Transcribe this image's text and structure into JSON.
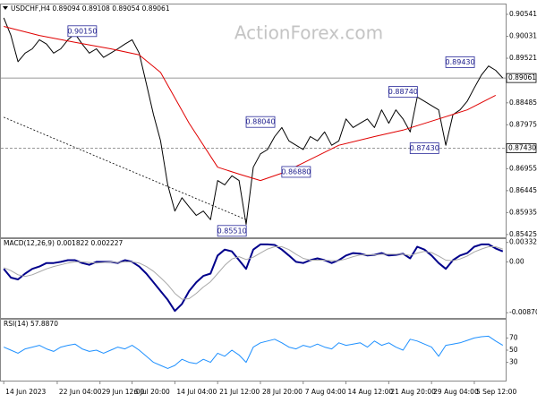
{
  "chart_data": [
    {
      "type": "line",
      "title": "USDCHF,H4  0.89094 0.89108 0.89054 0.89061",
      "watermark": "ActionForex.com",
      "xlim": [
        -0.4,
        70.4
      ],
      "ylim": [
        0.8536,
        0.9077
      ],
      "yticks": [
        0.90541,
        0.90031,
        0.89521,
        0.88485,
        0.87975,
        0.86955,
        0.86445,
        0.85935,
        0.85425
      ],
      "series": [
        {
          "color": "#000000",
          "values": [
            0.9046,
            0.9005,
            0.8944,
            0.8964,
            0.8974,
            0.8995,
            0.8985,
            0.8964,
            0.8974,
            0.8995,
            0.9009,
            0.8985,
            0.8964,
            0.8974,
            0.8954,
            0.8964,
            0.8974,
            0.8985,
            0.8995,
            0.8964,
            0.8893,
            0.8821,
            0.876,
            0.8658,
            0.8597,
            0.8628,
            0.8607,
            0.8587,
            0.8597,
            0.8577,
            0.8668,
            0.8658,
            0.8679,
            0.8668,
            0.8566,
            0.8699,
            0.873,
            0.874,
            0.877,
            0.8791,
            0.876,
            0.875,
            0.874,
            0.877,
            0.876,
            0.8781,
            0.875,
            0.876,
            0.8811,
            0.8791,
            0.8801,
            0.8811,
            0.8791,
            0.8832,
            0.8801,
            0.8832,
            0.8811,
            0.8781,
            0.8862,
            0.8852,
            0.8842,
            0.8832,
            0.875,
            0.8821,
            0.8832,
            0.8852,
            0.8883,
            0.8913,
            0.8934,
            0.8924,
            0.8906
          ]
        },
        {
          "color": "#e00000",
          "x": [
            0,
            5,
            10,
            15,
            19,
            22,
            26,
            30,
            33,
            36,
            39,
            42,
            47,
            52,
            56,
            61,
            65,
            69
          ],
          "values": [
            0.9026,
            0.9005,
            0.8989,
            0.8974,
            0.896,
            0.8919,
            0.8801,
            0.8699,
            0.8683,
            0.8668,
            0.8685,
            0.8709,
            0.875,
            0.877,
            0.8785,
            0.8811,
            0.8832,
            0.8866
          ]
        }
      ],
      "hlines": [
        {
          "value": 0.89061,
          "label": "0.89061",
          "style": "solid"
        },
        {
          "value": 0.8743,
          "label": "0.87430",
          "style": "dashed"
        }
      ],
      "trendline": {
        "x": [
          0,
          34
        ],
        "values": [
          0.8815,
          0.8577
        ]
      },
      "levels": {
        "x": [
          9,
          30,
          34,
          39,
          54,
          57,
          62
        ],
        "values": [
          0.9015,
          0.8551,
          0.8804,
          0.8688,
          0.8874,
          0.8743,
          0.8943
        ],
        "value_labels": [
          "0.90150",
          "0.85510",
          "0.88040",
          "0.86880",
          "0.88740",
          "0.87430",
          "0.89430"
        ]
      }
    },
    {
      "type": "line",
      "title": "MACD(12,26,9) 0.001822 0.002227",
      "xlim": [
        -0.4,
        70.4
      ],
      "ylim": [
        -0.0096,
        0.0039
      ],
      "yticks": [
        0.003328,
        {
          "value": 0,
          "label": "0.00"
        },
        -0.008707
      ],
      "series": [
        {
          "color": "#00008b",
          "values": [
            -0.0012,
            -0.0027,
            -0.003,
            -0.002,
            -0.0012,
            -0.0008,
            -0.0002,
            -0.0002,
            0,
            0.0003,
            0.0003,
            -0.0002,
            -0.0005,
            0,
            0,
            0,
            -0.0002,
            0.0003,
            0,
            -0.0008,
            -0.002,
            -0.0035,
            -0.005,
            -0.0065,
            -0.0084,
            -0.0072,
            -0.005,
            -0.0035,
            -0.0024,
            -0.002,
            0.0011,
            0.0021,
            0.0018,
            0.0003,
            -0.0012,
            0.0021,
            0.003,
            0.003,
            0.0029,
            0.0021,
            0.0011,
            0,
            -0.0002,
            0.0003,
            0.0006,
            0.0003,
            -0.0002,
            0.0003,
            0.0011,
            0.0015,
            0.0014,
            0.0011,
            0.0012,
            0.0015,
            0.0011,
            0.0012,
            0.0014,
            0.0006,
            0.0026,
            0.0021,
            0.0011,
            -0.0002,
            -0.0012,
            0.0003,
            0.0011,
            0.0015,
            0.0026,
            0.003,
            0.003,
            0.0023,
            0.0018
          ]
        },
        {
          "color": "#a8a8a8",
          "values": [
            -0.001,
            -0.0015,
            -0.0022,
            -0.0025,
            -0.0022,
            -0.0017,
            -0.0012,
            -0.0008,
            -0.0005,
            -0.0002,
            0,
            0,
            -0.0001,
            -0.0002,
            -0.0001,
            0,
            -0.0001,
            0,
            0,
            -0.0002,
            -0.0008,
            -0.0016,
            -0.0027,
            -0.0039,
            -0.0054,
            -0.0064,
            -0.0063,
            -0.0054,
            -0.0043,
            -0.0034,
            -0.002,
            -0.0006,
            0.0005,
            0.0009,
            0.0004,
            0.0008,
            0.0015,
            0.0022,
            0.0026,
            0.0026,
            0.0021,
            0.0013,
            0.0006,
            0.0003,
            0.0003,
            0.0003,
            0.0002,
            0.0002,
            0.0005,
            0.0009,
            0.0012,
            0.0012,
            0.0012,
            0.0013,
            0.0013,
            0.0013,
            0.0013,
            0.0011,
            0.0015,
            0.0018,
            0.0016,
            0.001,
            0.0003,
            0.0002,
            0.0005,
            0.001,
            0.0017,
            0.0022,
            0.0026,
            0.0026,
            0.0022
          ]
        }
      ]
    },
    {
      "type": "line",
      "title": "RSI(14) 57.8870",
      "xlim": [
        -0.4,
        70.4
      ],
      "ylim": [
        0,
        100
      ],
      "yticks": [
        70,
        50,
        30
      ],
      "series": [
        {
          "color": "#1e90ff",
          "values": [
            55,
            50,
            45,
            52,
            55,
            58,
            52,
            48,
            55,
            58,
            60,
            52,
            48,
            50,
            45,
            50,
            55,
            52,
            58,
            50,
            40,
            30,
            25,
            20,
            25,
            35,
            30,
            28,
            35,
            30,
            45,
            40,
            50,
            42,
            30,
            55,
            62,
            65,
            68,
            62,
            55,
            52,
            58,
            55,
            60,
            55,
            52,
            62,
            58,
            60,
            62,
            55,
            65,
            58,
            62,
            55,
            50,
            68,
            65,
            60,
            55,
            40,
            58,
            60,
            62,
            66,
            70,
            72,
            73,
            65,
            58
          ]
        }
      ],
      "xticks": [
        {
          "value": 0,
          "label": "14 Jun 2023"
        },
        {
          "value": 7.5,
          "label": "22 Jun 04:00"
        },
        {
          "value": 13.5,
          "label": "29 Jun 12:00"
        },
        {
          "value": 18,
          "label": "6 Jul 20:00"
        },
        {
          "value": 24,
          "label": "14 Jul 04:00"
        },
        {
          "value": 30,
          "label": "21 Jul 12:00"
        },
        {
          "value": 36,
          "label": "28 Jul 20:00"
        },
        {
          "value": 42,
          "label": "7 Aug 04:00"
        },
        {
          "value": 48,
          "label": "14 Aug 12:00"
        },
        {
          "value": 54,
          "label": "21 Aug 20:00"
        },
        {
          "value": 60,
          "label": "29 Aug 04:00"
        },
        {
          "value": 66,
          "label": "5 Sep 12:00"
        }
      ]
    }
  ]
}
